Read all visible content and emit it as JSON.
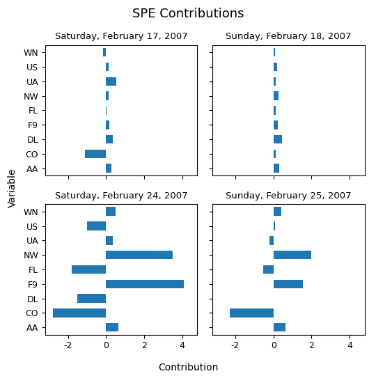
{
  "title": "SPE Contributions",
  "xlabel": "Contribution",
  "ylabel": "Variable",
  "chart_data": [
    {
      "type": "bar",
      "orientation": "horizontal",
      "title": "Saturday, February 17, 2007",
      "categories": [
        "WN",
        "US",
        "UA",
        "NW",
        "FL",
        "F9",
        "DL",
        "CO",
        "AA"
      ],
      "values": [
        -0.15,
        0.15,
        0.55,
        0.15,
        0.02,
        0.18,
        0.35,
        -1.1,
        0.3
      ],
      "xlim": [
        -3.2,
        4.8
      ],
      "xticks": [
        -2,
        0,
        2,
        4
      ],
      "grid": false,
      "tick_labels": "y"
    },
    {
      "type": "bar",
      "orientation": "horizontal",
      "title": "Sunday, February 18, 2007",
      "categories": [
        "WN",
        "US",
        "UA",
        "NW",
        "FL",
        "F9",
        "DL",
        "CO",
        "AA"
      ],
      "values": [
        0.1,
        0.18,
        0.12,
        0.28,
        0.12,
        0.22,
        0.45,
        0.12,
        0.3
      ],
      "xlim": [
        -3.2,
        4.8
      ],
      "xticks": [
        -2,
        0,
        2,
        4
      ],
      "grid": false,
      "tick_labels": false
    },
    {
      "type": "bar",
      "orientation": "horizontal",
      "title": "Saturday, February 24, 2007",
      "categories": [
        "WN",
        "US",
        "UA",
        "NW",
        "FL",
        "F9",
        "DL",
        "CO",
        "AA"
      ],
      "values": [
        0.5,
        -1.0,
        0.35,
        3.5,
        -1.8,
        4.1,
        -1.5,
        -2.8,
        0.65
      ],
      "xlim": [
        -3.2,
        4.8
      ],
      "xticks": [
        -2,
        0,
        2,
        4
      ],
      "grid": false,
      "tick_labels": true
    },
    {
      "type": "bar",
      "orientation": "horizontal",
      "title": "Sunday, February 25, 2007",
      "categories": [
        "WN",
        "US",
        "UA",
        "NW",
        "FL",
        "F9",
        "DL",
        "CO",
        "AA"
      ],
      "values": [
        0.4,
        0.1,
        -0.22,
        2.0,
        -0.55,
        1.55,
        0.0,
        -2.3,
        0.65
      ],
      "xlim": [
        -3.2,
        4.8
      ],
      "xticks": [
        -2,
        0,
        2,
        4
      ],
      "grid": false,
      "tick_labels": "x"
    }
  ]
}
